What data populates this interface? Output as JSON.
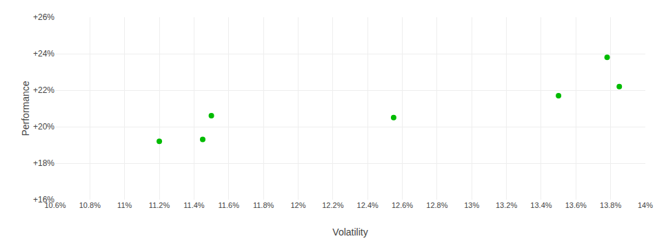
{
  "chart_data": {
    "type": "scatter",
    "xlabel": "Volatility",
    "ylabel": "Performance",
    "x": [
      11.2,
      11.45,
      11.5,
      12.55,
      13.5,
      13.78,
      13.85
    ],
    "values": [
      19.2,
      19.3,
      20.6,
      20.5,
      21.7,
      23.8,
      22.2
    ],
    "color": "#00bb00",
    "marker": "circle",
    "xlim": [
      10.6,
      14
    ],
    "ylim": [
      16,
      26
    ],
    "xticks": [
      {
        "value": 10.6,
        "label": "10.6%"
      },
      {
        "value": 10.8,
        "label": "10.8%"
      },
      {
        "value": 11.0,
        "label": "11%"
      },
      {
        "value": 11.2,
        "label": "11.2%"
      },
      {
        "value": 11.4,
        "label": "11.4%"
      },
      {
        "value": 11.6,
        "label": "11.6%"
      },
      {
        "value": 11.8,
        "label": "11.8%"
      },
      {
        "value": 12.0,
        "label": "12%"
      },
      {
        "value": 12.2,
        "label": "12.2%"
      },
      {
        "value": 12.4,
        "label": "12.4%"
      },
      {
        "value": 12.6,
        "label": "12.6%"
      },
      {
        "value": 12.8,
        "label": "12.8%"
      },
      {
        "value": 13.0,
        "label": "13%"
      },
      {
        "value": 13.2,
        "label": "13.2%"
      },
      {
        "value": 13.4,
        "label": "13.4%"
      },
      {
        "value": 13.6,
        "label": "13.6%"
      },
      {
        "value": 13.8,
        "label": "13.8%"
      },
      {
        "value": 14.0,
        "label": "14%"
      }
    ],
    "yticks": [
      {
        "value": 16,
        "label": "+16%"
      },
      {
        "value": 18,
        "label": "+18%"
      },
      {
        "value": 20,
        "label": "+20%"
      },
      {
        "value": 22,
        "label": "+22%"
      },
      {
        "value": 24,
        "label": "+24%"
      },
      {
        "value": 26,
        "label": "+26%"
      }
    ],
    "grid": true
  }
}
